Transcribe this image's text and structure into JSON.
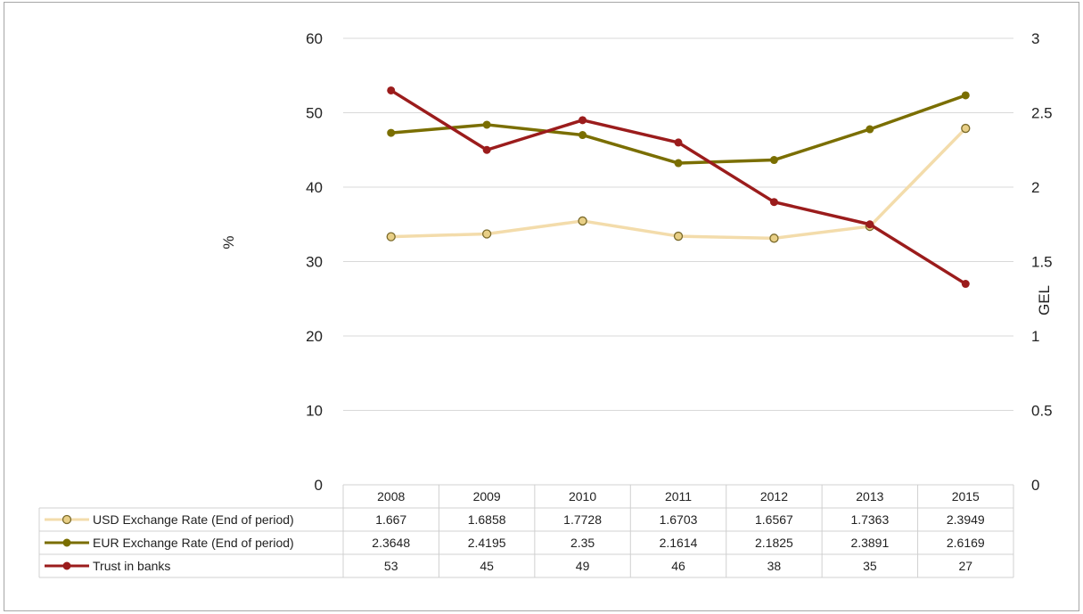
{
  "chart_data": {
    "type": "line",
    "title": "",
    "categories": [
      "2008",
      "2009",
      "2010",
      "2011",
      "2012",
      "2013",
      "2015"
    ],
    "y_left": {
      "label": "%",
      "ticks": [
        "0",
        "10",
        "20",
        "30",
        "40",
        "50",
        "60"
      ],
      "range": [
        0,
        60
      ]
    },
    "y_right": {
      "label": "GEL",
      "ticks": [
        "0",
        "0.5",
        "1",
        "1.5",
        "2",
        "2.5",
        "3"
      ],
      "range": [
        0,
        3
      ]
    },
    "grid": true,
    "legend_placement": "data table, left of rows",
    "series": [
      {
        "name": "USD Exchange Rate (End of period)",
        "axis": "right",
        "color": "#f3dcab",
        "marker_fill": "#e8cf86",
        "marker_stroke": "#7a6a2a",
        "hollow_marker": true,
        "values": [
          1.667,
          1.6858,
          1.7728,
          1.6703,
          1.6567,
          1.7363,
          2.3949
        ],
        "labels": [
          "1.667",
          "1.6858",
          "1.7728",
          "1.6703",
          "1.6567",
          "1.7363",
          "2.3949"
        ]
      },
      {
        "name": "EUR Exchange Rate (End of period)",
        "axis": "right",
        "color": "#7a6e00",
        "marker_fill": "#7a6e00",
        "marker_stroke": "#7a6e00",
        "hollow_marker": false,
        "values": [
          2.3648,
          2.4195,
          2.35,
          2.1614,
          2.1825,
          2.3891,
          2.6169
        ],
        "labels": [
          "2.3648",
          "2.4195",
          "2.35",
          "2.1614",
          "2.1825",
          "2.3891",
          "2.6169"
        ]
      },
      {
        "name": "Trust in banks",
        "axis": "left",
        "color": "#9b1c1c",
        "marker_fill": "#9b1c1c",
        "marker_stroke": "#9b1c1c",
        "hollow_marker": false,
        "values": [
          53,
          45,
          49,
          46,
          38,
          35,
          27
        ],
        "labels": [
          "53",
          "45",
          "49",
          "46",
          "38",
          "35",
          "27"
        ]
      }
    ]
  }
}
